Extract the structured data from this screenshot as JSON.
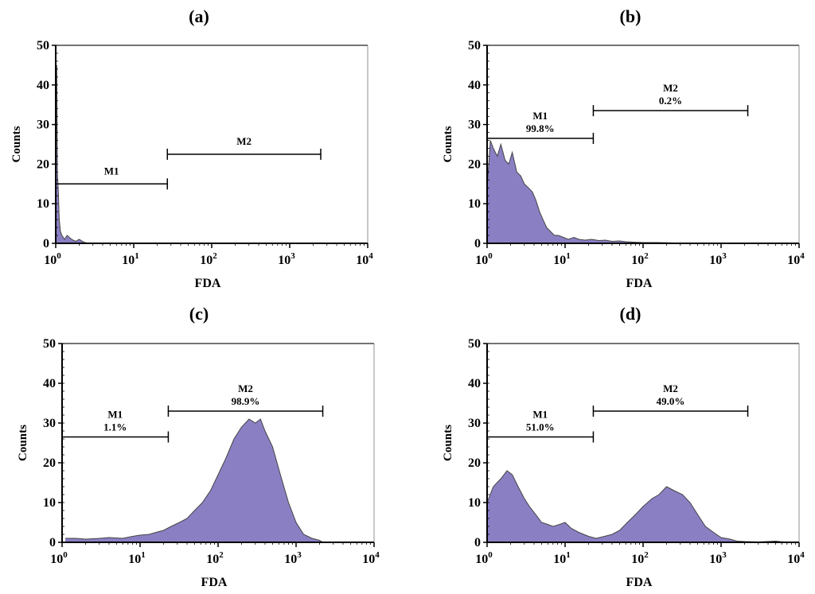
{
  "chart_data": [
    {
      "panel": "(a)",
      "type": "histogram",
      "xscale": "log",
      "xlim": [
        1,
        10000
      ],
      "ylim": [
        0,
        50
      ],
      "xlabel": "FDA",
      "ylabel": "Counts",
      "yticks": [
        "0",
        "10",
        "20",
        "30",
        "40",
        "50"
      ],
      "xticks": [
        {
          "base": "10",
          "exp": "0"
        },
        {
          "base": "10",
          "exp": "1"
        },
        {
          "base": "10",
          "exp": "2"
        },
        {
          "base": "10",
          "exp": "3"
        },
        {
          "base": "10",
          "exp": "4"
        }
      ],
      "fill_color": "#8b7fc4",
      "line_color": "#444444",
      "markers": [
        {
          "name": "M1",
          "percent": "",
          "x_start": 1,
          "x_end": 27,
          "y": 15
        },
        {
          "name": "M2",
          "percent": "",
          "x_start": 27,
          "x_end": 2500,
          "y": 22.5
        }
      ],
      "histogram": [
        [
          1.0,
          1
        ],
        [
          1.03,
          45
        ],
        [
          1.05,
          18
        ],
        [
          1.08,
          13
        ],
        [
          1.11,
          6
        ],
        [
          1.15,
          3
        ],
        [
          1.2,
          2
        ],
        [
          1.3,
          1
        ],
        [
          1.4,
          2
        ],
        [
          1.6,
          1
        ],
        [
          1.8,
          0.5
        ],
        [
          2.0,
          1
        ],
        [
          2.3,
          0.3
        ],
        [
          2.6,
          0
        ]
      ]
    },
    {
      "panel": "(b)",
      "type": "histogram",
      "xscale": "log",
      "xlim": [
        1,
        10000
      ],
      "ylim": [
        0,
        50
      ],
      "xlabel": "FDA",
      "ylabel": "Counts",
      "yticks": [
        "0",
        "10",
        "20",
        "30",
        "40",
        "50"
      ],
      "xticks": [
        {
          "base": "10",
          "exp": "0"
        },
        {
          "base": "10",
          "exp": "1"
        },
        {
          "base": "10",
          "exp": "2"
        },
        {
          "base": "10",
          "exp": "3"
        },
        {
          "base": "10",
          "exp": "4"
        }
      ],
      "fill_color": "#8b7fc4",
      "line_color": "#444444",
      "markers": [
        {
          "name": "M1",
          "percent": "99.8%",
          "x_start": 1,
          "x_end": 23,
          "y": 26.5
        },
        {
          "name": "M2",
          "percent": "0.2%",
          "x_start": 23,
          "x_end": 2200,
          "y": 33.5
        }
      ],
      "histogram": [
        [
          1.0,
          14
        ],
        [
          1.1,
          26
        ],
        [
          1.2,
          24
        ],
        [
          1.35,
          22
        ],
        [
          1.5,
          25
        ],
        [
          1.7,
          21
        ],
        [
          1.9,
          20
        ],
        [
          2.1,
          23
        ],
        [
          2.4,
          18
        ],
        [
          2.7,
          17
        ],
        [
          3.0,
          15
        ],
        [
          3.4,
          14
        ],
        [
          3.8,
          13
        ],
        [
          4.2,
          11
        ],
        [
          4.7,
          8
        ],
        [
          5.2,
          6
        ],
        [
          5.8,
          4
        ],
        [
          6.5,
          3
        ],
        [
          7.3,
          2
        ],
        [
          8.2,
          2
        ],
        [
          9.5,
          1.5
        ],
        [
          11,
          1
        ],
        [
          13,
          1.5
        ],
        [
          15,
          1
        ],
        [
          18,
          0.8
        ],
        [
          22,
          1
        ],
        [
          27,
          0.7
        ],
        [
          33,
          0.8
        ],
        [
          40,
          0.5
        ],
        [
          50,
          0.6
        ],
        [
          60,
          0.4
        ],
        [
          75,
          0.3
        ],
        [
          100,
          0.2
        ],
        [
          150,
          0.2
        ],
        [
          250,
          0.1
        ],
        [
          400,
          0.1
        ],
        [
          1000,
          0
        ]
      ]
    },
    {
      "panel": "(c)",
      "type": "histogram",
      "xscale": "log",
      "xlim": [
        1,
        10000
      ],
      "ylim": [
        0,
        50
      ],
      "xlabel": "FDA",
      "ylabel": "Counts",
      "yticks": [
        "0",
        "10",
        "20",
        "30",
        "40",
        "50"
      ],
      "xticks": [
        {
          "base": "10",
          "exp": "0"
        },
        {
          "base": "10",
          "exp": "1"
        },
        {
          "base": "10",
          "exp": "2"
        },
        {
          "base": "10",
          "exp": "3"
        },
        {
          "base": "10",
          "exp": "4"
        }
      ],
      "fill_color": "#8b7fc4",
      "line_color": "#444444",
      "markers": [
        {
          "name": "M1",
          "percent": "1.1%",
          "x_start": 1,
          "x_end": 23,
          "y": 26.5
        },
        {
          "name": "M2",
          "percent": "98.9%",
          "x_start": 23,
          "x_end": 2200,
          "y": 33
        }
      ],
      "histogram": [
        [
          1.1,
          1
        ],
        [
          1.5,
          1
        ],
        [
          2,
          0.8
        ],
        [
          3,
          1
        ],
        [
          4,
          1.2
        ],
        [
          6,
          1
        ],
        [
          8,
          1.5
        ],
        [
          10,
          1.8
        ],
        [
          13,
          2
        ],
        [
          16,
          2.5
        ],
        [
          20,
          3
        ],
        [
          25,
          4
        ],
        [
          32,
          5
        ],
        [
          40,
          6
        ],
        [
          50,
          8
        ],
        [
          63,
          10
        ],
        [
          80,
          13
        ],
        [
          100,
          17
        ],
        [
          125,
          21
        ],
        [
          160,
          26
        ],
        [
          200,
          29
        ],
        [
          250,
          31
        ],
        [
          300,
          30
        ],
        [
          350,
          31
        ],
        [
          400,
          28
        ],
        [
          500,
          24
        ],
        [
          630,
          17
        ],
        [
          800,
          10
        ],
        [
          1000,
          5
        ],
        [
          1250,
          2
        ],
        [
          1600,
          1
        ],
        [
          2000,
          0.5
        ],
        [
          2200,
          0
        ]
      ]
    },
    {
      "panel": "(d)",
      "type": "histogram",
      "xscale": "log",
      "xlim": [
        1,
        10000
      ],
      "ylim": [
        0,
        50
      ],
      "xlabel": "FDA",
      "ylabel": "Counts",
      "yticks": [
        "0",
        "10",
        "20",
        "30",
        "40",
        "50"
      ],
      "xticks": [
        {
          "base": "10",
          "exp": "0"
        },
        {
          "base": "10",
          "exp": "1"
        },
        {
          "base": "10",
          "exp": "2"
        },
        {
          "base": "10",
          "exp": "3"
        },
        {
          "base": "10",
          "exp": "4"
        }
      ],
      "fill_color": "#8b7fc4",
      "line_color": "#444444",
      "markers": [
        {
          "name": "M1",
          "percent": "51.0%",
          "x_start": 1,
          "x_end": 23,
          "y": 26.5
        },
        {
          "name": "M2",
          "percent": "49.0%",
          "x_start": 23,
          "x_end": 2200,
          "y": 33
        }
      ],
      "histogram": [
        [
          1.0,
          10
        ],
        [
          1.2,
          14
        ],
        [
          1.5,
          16
        ],
        [
          1.8,
          18
        ],
        [
          2.1,
          17
        ],
        [
          2.5,
          14
        ],
        [
          3.0,
          11
        ],
        [
          3.5,
          9
        ],
        [
          4.2,
          7
        ],
        [
          5,
          5
        ],
        [
          6,
          4.5
        ],
        [
          7,
          4
        ],
        [
          8.5,
          4.5
        ],
        [
          10,
          5
        ],
        [
          12,
          3.5
        ],
        [
          15,
          2.5
        ],
        [
          20,
          1.5
        ],
        [
          25,
          1
        ],
        [
          32,
          1.5
        ],
        [
          40,
          2
        ],
        [
          50,
          3
        ],
        [
          63,
          5
        ],
        [
          80,
          7
        ],
        [
          100,
          9
        ],
        [
          130,
          11
        ],
        [
          160,
          12
        ],
        [
          200,
          14
        ],
        [
          250,
          13
        ],
        [
          320,
          12
        ],
        [
          400,
          10
        ],
        [
          500,
          7
        ],
        [
          630,
          4
        ],
        [
          800,
          2.5
        ],
        [
          1000,
          1.2
        ],
        [
          1300,
          0.8
        ],
        [
          1600,
          0.3
        ],
        [
          2000,
          0.2
        ],
        [
          3000,
          0.1
        ],
        [
          5000,
          0.3
        ],
        [
          7000,
          0
        ]
      ]
    }
  ]
}
